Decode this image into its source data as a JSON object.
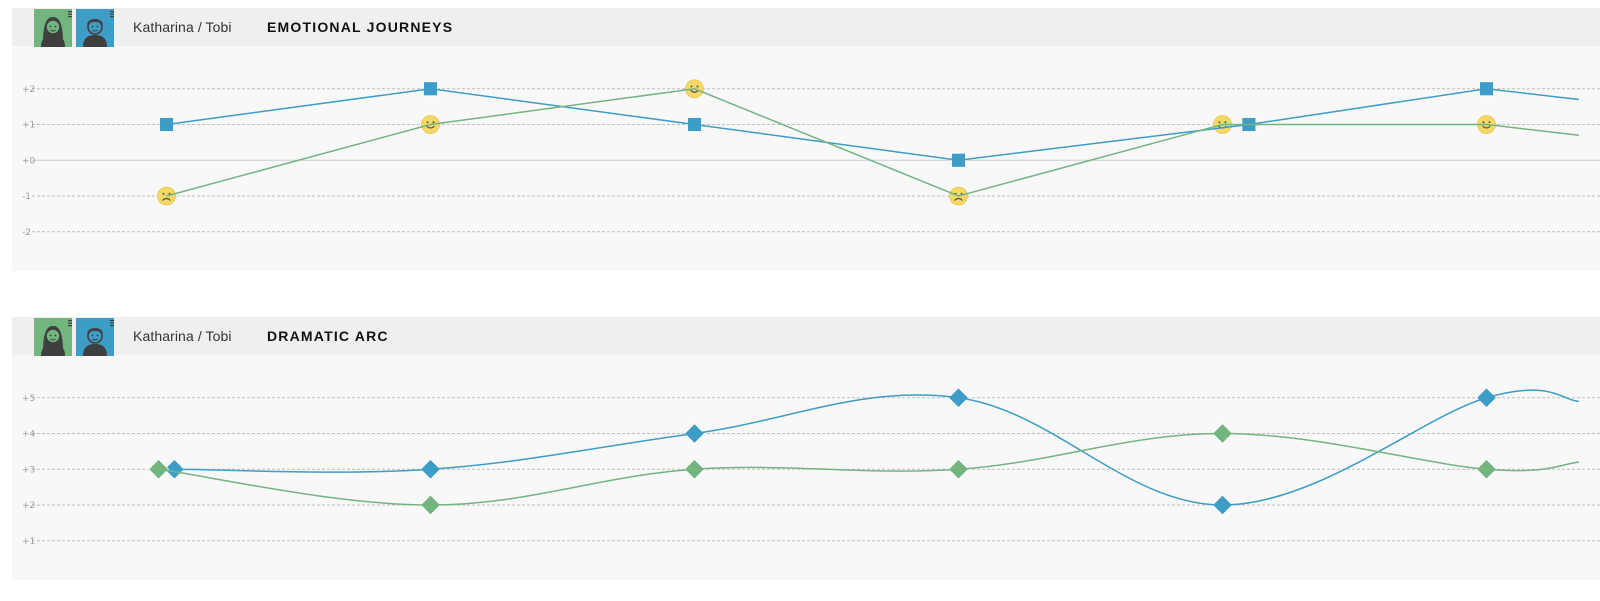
{
  "panels": [
    {
      "names": "Katharina / Tobi",
      "title": "EMOTIONAL JOURNEYS",
      "avatars": [
        {
          "name": "katharina-avatar-icon",
          "color": "#72b57f"
        },
        {
          "name": "tobi-avatar-icon",
          "color": "#3d9dc6"
        }
      ]
    },
    {
      "names": "Katharina / Tobi",
      "title": "DRAMATIC ARC",
      "avatars": [
        {
          "name": "katharina-avatar-icon",
          "color": "#72b57f"
        },
        {
          "name": "tobi-avatar-icon",
          "color": "#3d9dc6"
        }
      ]
    }
  ],
  "chart_data": [
    {
      "type": "line",
      "title": "EMOTIONAL JOURNEYS",
      "ylim": [
        -3,
        3
      ],
      "y_ticks": [
        "+2",
        "+1",
        "+0",
        "-1",
        "-2"
      ],
      "series": [
        {
          "color": "#3d9dc6",
          "marker": "square",
          "points": [
            [
              1,
              1
            ],
            [
              2,
              2
            ],
            [
              3,
              1
            ],
            [
              4,
              0
            ],
            [
              5.1,
              1
            ],
            [
              6,
              2
            ],
            [
              6.35,
              1.7
            ]
          ]
        },
        {
          "color": "#72b57f",
          "marker": "smiley",
          "points": [
            [
              1,
              -1
            ],
            [
              2,
              1
            ],
            [
              3,
              2
            ],
            [
              4,
              -1
            ],
            [
              5,
              1
            ],
            [
              6,
              1
            ],
            [
              6.35,
              0.7
            ]
          ]
        }
      ]
    },
    {
      "type": "line",
      "title": "DRAMATIC ARC",
      "ylim": [
        0,
        6
      ],
      "y_ticks": [
        "+5",
        "+4",
        "+3",
        "+2",
        "+1"
      ],
      "series": [
        {
          "color": "#3d9dc6",
          "marker": "diamond",
          "points": [
            [
              1.03,
              3
            ],
            [
              2,
              3
            ],
            [
              3,
              4
            ],
            [
              4,
              5
            ],
            [
              5,
              2
            ],
            [
              6,
              5
            ],
            [
              6.35,
              4.9
            ]
          ]
        },
        {
          "color": "#72b57f",
          "marker": "diamond",
          "points": [
            [
              0.97,
              3
            ],
            [
              2,
              2
            ],
            [
              3,
              3
            ],
            [
              4,
              3
            ],
            [
              5,
              4
            ],
            [
              6,
              3
            ],
            [
              6.35,
              3.2
            ]
          ]
        }
      ]
    }
  ]
}
